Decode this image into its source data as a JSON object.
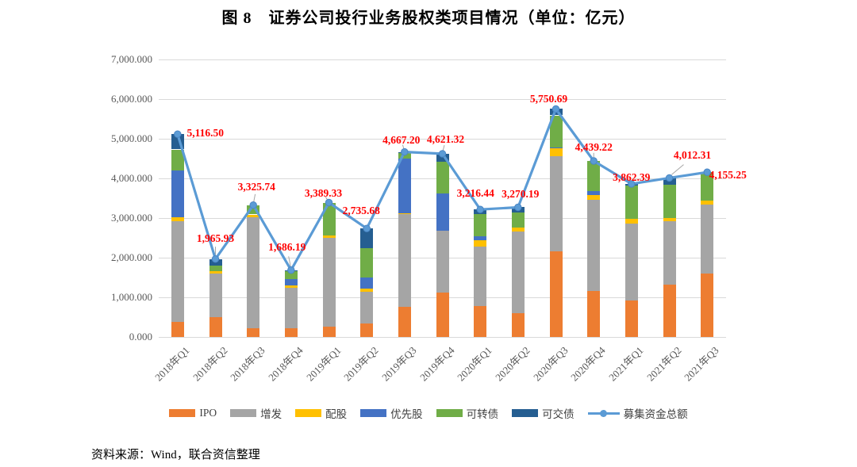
{
  "figure": {
    "title": "图 8　证券公司投行业务股权类项目情况（单位：亿元）",
    "source": "资料来源：Wind，联合资信整理"
  },
  "chart_data": {
    "type": "bar",
    "subtype": "stacked-bars-with-line-overlay",
    "unit": "亿元",
    "title": "图 8　证券公司投行业务股权类项目情况（单位：亿元）",
    "categories": [
      "2018年Q1",
      "2018年Q2",
      "2018年Q3",
      "2018年Q4",
      "2019年Q1",
      "2019年Q2",
      "2019年Q3",
      "2019年Q4",
      "2020年Q1",
      "2020年Q2",
      "2020年Q3",
      "2020年Q4",
      "2021年Q1",
      "2021年Q2",
      "2021年Q3"
    ],
    "series": [
      {
        "name": "IPO",
        "color": "#ED7D31",
        "values": [
          380,
          500,
          230,
          230,
          270,
          335,
          770,
          1130,
          790,
          600,
          2170,
          1170,
          930,
          1330,
          1600
        ]
      },
      {
        "name": "增发",
        "color": "#A5A5A5",
        "values": [
          2550,
          1100,
          2790,
          1010,
          2230,
          800,
          2330,
          1560,
          1490,
          2060,
          2390,
          2290,
          1930,
          1600,
          1740
        ]
      },
      {
        "name": "配股",
        "color": "#FFC000",
        "values": [
          100,
          65,
          70,
          60,
          60,
          95,
          30,
          0,
          160,
          100,
          200,
          130,
          130,
          70,
          95
        ]
      },
      {
        "name": "优先股",
        "color": "#4472C4",
        "values": [
          1170,
          0,
          0,
          160,
          0,
          265,
          1370,
          930,
          100,
          0,
          30,
          90,
          0,
          0,
          0
        ]
      },
      {
        "name": "可转债",
        "color": "#70AD47",
        "values": [
          530,
          130,
          235.74,
          200,
          829.33,
          740,
          140,
          800,
          560,
          380,
          800,
          759.22,
          830,
          840,
          720.25
        ]
      },
      {
        "name": "可交债",
        "color": "#255E91",
        "values": [
          386.5,
          170.93,
          0,
          26.19,
          0,
          500.68,
          27.2,
          201.32,
          116.44,
          130.19,
          160.69,
          0,
          42.39,
          172.31,
          0
        ]
      }
    ],
    "line_series": {
      "name": "募集资金总额",
      "color": "#5B9BD5",
      "marker_stroke": "#4A86C5",
      "label_color": "#FF0000",
      "values": [
        5116.5,
        1965.93,
        3325.74,
        1686.19,
        3389.33,
        2735.68,
        4667.2,
        4621.32,
        3216.44,
        3270.19,
        5750.69,
        4439.22,
        3862.39,
        4012.31,
        4155.25
      ],
      "labels": [
        "5,116.50",
        "1,965.93",
        "3,325.74",
        "1,686.19",
        "3,389.33",
        "2,735.68",
        "4,667.20",
        "4,621.32",
        "3,216.44",
        "3,270.19",
        "5,750.69",
        "4,439.22",
        "3,862.39",
        "4,012.31",
        "4,155.25"
      ]
    },
    "ylim": [
      0,
      7000
    ],
    "ytick_step": 1000,
    "ytick_labels": [
      "0.000",
      "1,000.000",
      "2,000.000",
      "3,000.000",
      "4,000.000",
      "5,000.000",
      "6,000.000",
      "7,000.000"
    ],
    "grid": true,
    "gridline_color": "#D9D9D9",
    "axis_text_color": "#595959",
    "legend_position": "bottom",
    "xlabel": "",
    "ylabel": ""
  }
}
